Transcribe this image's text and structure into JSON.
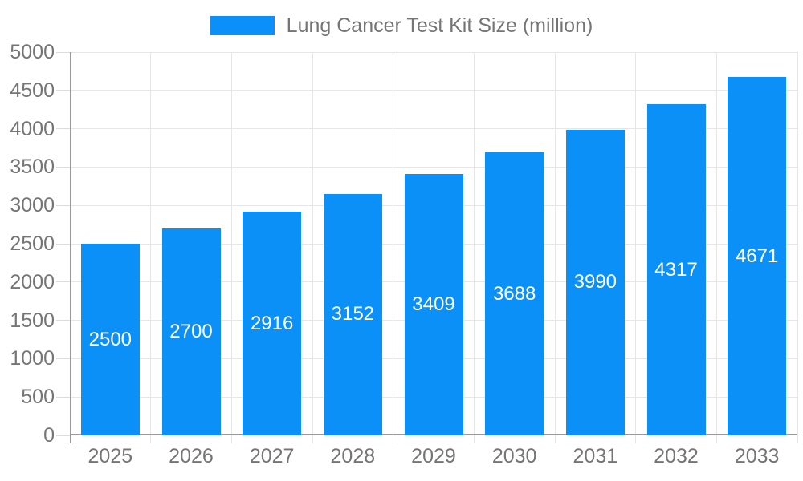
{
  "legend": {
    "label": "Lung Cancer Test Kit Size (million)"
  },
  "colors": {
    "bar": "#0b90f8",
    "grid": "#e6e6e6",
    "axis": "#9a9a9a",
    "tick": "#dcdcdc",
    "text": "#757575",
    "bar_label": "#ffffff",
    "background": "#ffffff"
  },
  "chart_data": {
    "type": "bar",
    "title": "Lung Cancer Test Kit Size (million)",
    "series_name": "Lung Cancer Test Kit Size (million)",
    "categories": [
      "2025",
      "2026",
      "2027",
      "2028",
      "2029",
      "2030",
      "2031",
      "2032",
      "2033"
    ],
    "values": [
      2500,
      2700,
      2916,
      3152,
      3409,
      3688,
      3990,
      4317,
      4671
    ],
    "xlabel": "",
    "ylabel": "",
    "ylim": [
      0,
      5000
    ],
    "ytick_step": 500,
    "yticks": [
      0,
      500,
      1000,
      1500,
      2000,
      2500,
      3000,
      3500,
      4000,
      4500,
      5000
    ],
    "grid": "both",
    "legend_position": "top-center",
    "value_labels": "inside-center"
  }
}
